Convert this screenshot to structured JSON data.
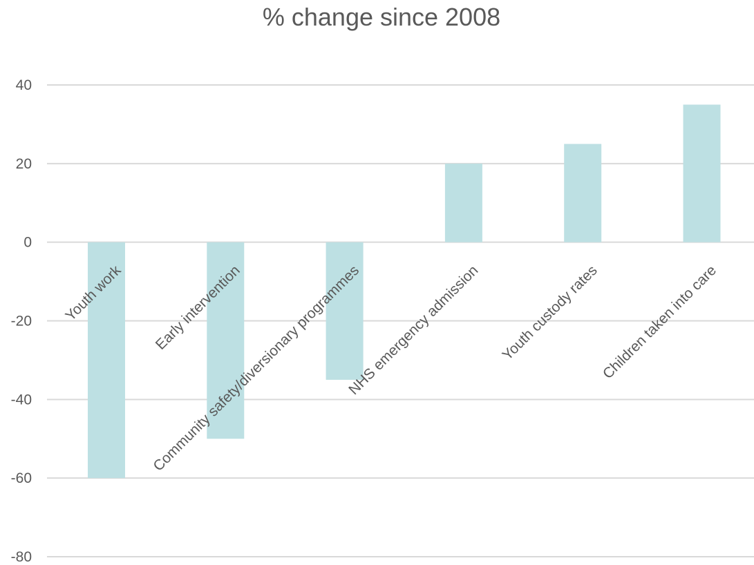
{
  "chart_data": {
    "type": "bar",
    "title": "% change since 2008",
    "categories": [
      "Youth work",
      "Early intervention",
      "Community safety/diversionary programmes",
      "NHS emergency admission",
      "Youth custody rates",
      "Children taken into care"
    ],
    "values": [
      -60,
      -50,
      -35,
      20,
      25,
      35
    ],
    "ylim": [
      -80,
      40
    ],
    "yticks": [
      40,
      20,
      0,
      -20,
      -40,
      -60,
      -80
    ],
    "ytick_labels": [
      "40",
      "20",
      "0",
      "-20",
      "-40",
      "-60",
      "-80"
    ],
    "grid": true,
    "bar_color": "#bde0e3",
    "legend": "none"
  }
}
